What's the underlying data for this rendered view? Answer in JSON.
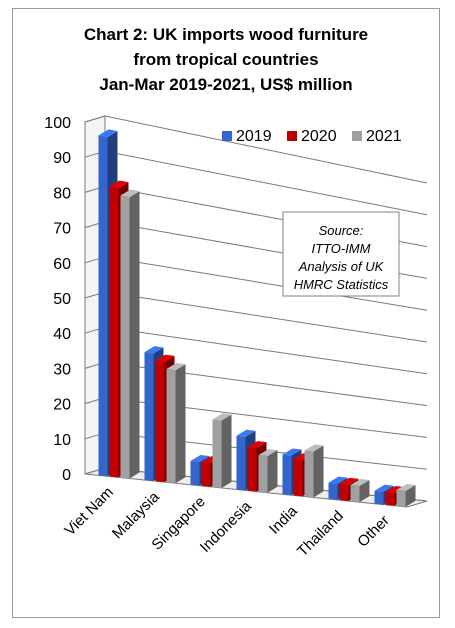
{
  "chart_data": {
    "type": "bar",
    "title_lines": [
      "Chart 2: UK imports wood furniture",
      "from tropical countries",
      "Jan-Mar 2019-2021, US$ million"
    ],
    "categories": [
      "Viet Nam",
      "Malaysia",
      "Singapore",
      "Indonesia",
      "India",
      "Thailand",
      "Other"
    ],
    "series": [
      {
        "name": "2019",
        "color": "#3366CC",
        "values": [
          97,
          37,
          7,
          16,
          12,
          5,
          4
        ]
      },
      {
        "name": "2020",
        "color": "#C00000",
        "values": [
          83,
          35,
          7,
          13,
          11,
          5,
          4
        ]
      },
      {
        "name": "2021",
        "color": "#A0A0A0",
        "values": [
          81,
          33,
          20,
          11,
          14,
          5,
          5
        ]
      }
    ],
    "ylim": [
      0,
      100
    ],
    "yticks": [
      "0",
      "10",
      "20",
      "30",
      "40",
      "50",
      "60",
      "70",
      "80",
      "90",
      "100"
    ],
    "grid": true,
    "legend_position": "top-right",
    "annotation_lines": [
      "Source:",
      "ITTO-IMM",
      "Analysis of UK",
      "HMRC Statistics"
    ]
  }
}
